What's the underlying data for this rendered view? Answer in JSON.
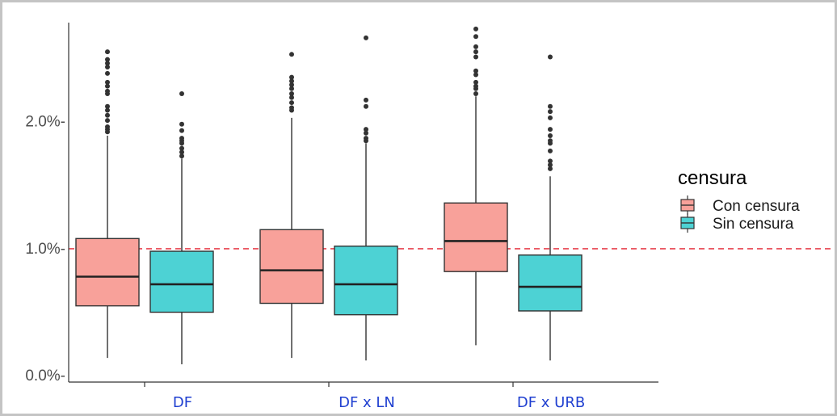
{
  "chart_data": {
    "type": "boxplot",
    "categories": [
      "DF",
      "DF x LN",
      "DF x URB"
    ],
    "y_ticks": [
      {
        "value": 0.0,
        "label": "0.0%-"
      },
      {
        "value": 1.0,
        "label": "1.0%-"
      },
      {
        "value": 2.0,
        "label": "2.0%-"
      }
    ],
    "ylim": [
      -0.05,
      2.78
    ],
    "reference_line": {
      "value": 1.0,
      "color": "#e8424f",
      "style": "dashed"
    },
    "legend": {
      "title": "censura",
      "position": "right"
    },
    "grid": false,
    "series": [
      {
        "name": "Con censura",
        "color": "#f8a19a",
        "boxes": [
          {
            "whisker_low": 0.14,
            "q1": 0.55,
            "median": 0.78,
            "q3": 1.08,
            "whisker_high": 1.89,
            "outliers": [
              1.92,
              1.94,
              1.96,
              2.01,
              2.05,
              2.09,
              2.12,
              2.22,
              2.24,
              2.28,
              2.31,
              2.38,
              2.43,
              2.46,
              2.49,
              2.55
            ]
          },
          {
            "whisker_low": 0.14,
            "q1": 0.57,
            "median": 0.83,
            "q3": 1.15,
            "whisker_high": 2.03,
            "outliers": [
              2.09,
              2.11,
              2.15,
              2.19,
              2.22,
              2.26,
              2.29,
              2.32,
              2.35,
              2.53
            ]
          },
          {
            "whisker_low": 0.24,
            "q1": 0.82,
            "median": 1.06,
            "q3": 1.36,
            "whisker_high": 2.2,
            "outliers": [
              2.22,
              2.26,
              2.28,
              2.31,
              2.37,
              2.4,
              2.51,
              2.55,
              2.59,
              2.67,
              2.73
            ]
          }
        ]
      },
      {
        "name": "Sin censura",
        "color": "#4dd2d4",
        "boxes": [
          {
            "whisker_low": 0.09,
            "q1": 0.5,
            "median": 0.72,
            "q3": 0.98,
            "whisker_high": 1.71,
            "outliers": [
              1.73,
              1.76,
              1.79,
              1.83,
              1.85,
              1.87,
              1.93,
              1.98,
              2.22
            ]
          },
          {
            "whisker_low": 0.12,
            "q1": 0.48,
            "median": 0.72,
            "q3": 1.02,
            "whisker_high": 1.83,
            "outliers": [
              1.85,
              1.87,
              1.91,
              1.94,
              2.12,
              2.17,
              2.66
            ]
          },
          {
            "whisker_low": 0.12,
            "q1": 0.51,
            "median": 0.7,
            "q3": 0.95,
            "whisker_high": 1.57,
            "outliers": [
              1.63,
              1.66,
              1.69,
              1.77,
              1.83,
              1.85,
              1.89,
              1.94,
              2.03,
              2.08,
              2.12,
              2.51
            ]
          }
        ]
      }
    ]
  }
}
